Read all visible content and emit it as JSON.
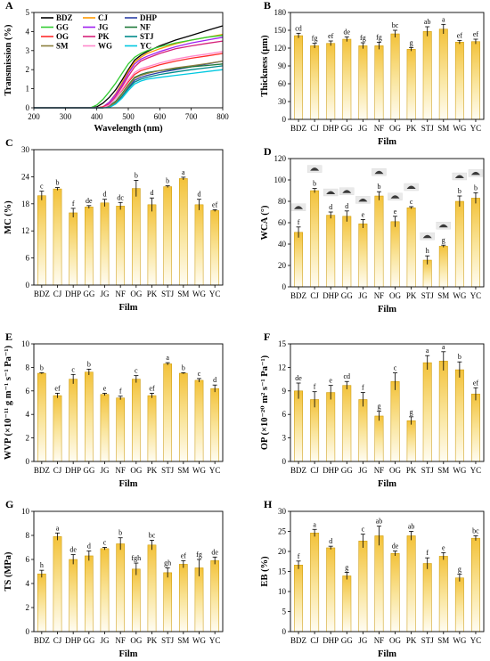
{
  "chart_data": [
    {
      "id": "A",
      "panel_label": "A",
      "type": "line",
      "xlabel": "Wavelength (nm)",
      "ylabel": "Transmission (%)",
      "xlim": [
        200,
        800
      ],
      "ylim": [
        0,
        5
      ],
      "xticks": [
        "200",
        "300",
        "400",
        "500",
        "600",
        "700",
        "800"
      ],
      "yticks": [
        "0",
        "1",
        "2",
        "3",
        "4",
        "5"
      ],
      "x": [
        200,
        380,
        400,
        420,
        440,
        460,
        480,
        500,
        520,
        540,
        560,
        600,
        650,
        700,
        750,
        800
      ],
      "series": [
        {
          "name": "BDZ",
          "color": "#000000",
          "values": [
            0,
            0,
            0.05,
            0.25,
            0.55,
            0.95,
            1.45,
            2.0,
            2.5,
            2.75,
            2.95,
            3.25,
            3.55,
            3.8,
            4.05,
            4.3
          ]
        },
        {
          "name": "CJ",
          "color": "#ff9900",
          "values": [
            0,
            0,
            0,
            0.05,
            0.3,
            0.75,
            1.3,
            1.9,
            2.4,
            2.65,
            2.85,
            3.1,
            3.35,
            3.55,
            3.7,
            3.85
          ]
        },
        {
          "name": "DHP",
          "color": "#2b3fa6",
          "values": [
            0,
            0,
            0,
            0,
            0.05,
            0.25,
            0.6,
            1.05,
            1.45,
            1.6,
            1.7,
            1.85,
            2.0,
            2.15,
            2.3,
            2.45
          ]
        },
        {
          "name": "GG",
          "color": "#33cc33",
          "values": [
            0,
            0,
            0.15,
            0.45,
            0.85,
            1.3,
            1.8,
            2.3,
            2.65,
            2.85,
            3.0,
            3.2,
            3.4,
            3.55,
            3.7,
            3.8
          ]
        },
        {
          "name": "JG",
          "color": "#a020f0",
          "values": [
            0,
            0,
            0,
            0.05,
            0.3,
            0.7,
            1.2,
            1.8,
            2.3,
            2.55,
            2.7,
            2.95,
            3.2,
            3.4,
            3.55,
            3.7
          ]
        },
        {
          "name": "NF",
          "color": "#1f7a3a",
          "values": [
            0,
            0,
            0,
            0,
            0.1,
            0.35,
            0.75,
            1.2,
            1.6,
            1.75,
            1.85,
            1.95,
            2.05,
            2.15,
            2.22,
            2.3
          ]
        },
        {
          "name": "OG",
          "color": "#ff2a2a",
          "values": [
            0,
            0,
            0,
            0.05,
            0.2,
            0.5,
            0.9,
            1.35,
            1.75,
            1.95,
            2.05,
            2.25,
            2.45,
            2.6,
            2.72,
            2.85
          ]
        },
        {
          "name": "PK",
          "color": "#d6217a",
          "values": [
            0,
            0,
            0,
            0,
            0.2,
            0.6,
            1.1,
            1.65,
            2.15,
            2.45,
            2.6,
            2.85,
            3.1,
            3.25,
            3.38,
            3.5
          ]
        },
        {
          "name": "STJ",
          "color": "#008b8b",
          "values": [
            0,
            0,
            0,
            0,
            0.05,
            0.25,
            0.6,
            1.0,
            1.35,
            1.5,
            1.6,
            1.75,
            1.88,
            2.0,
            2.1,
            2.2
          ]
        },
        {
          "name": "SM",
          "color": "#8b7d3c",
          "values": [
            0,
            0,
            0,
            0,
            0.05,
            0.3,
            0.7,
            1.15,
            1.55,
            1.7,
            1.8,
            1.95,
            2.1,
            2.2,
            2.32,
            2.45
          ]
        },
        {
          "name": "WG",
          "color": "#ff88cc",
          "values": [
            0,
            0,
            0,
            0,
            0.15,
            0.5,
            0.95,
            1.45,
            1.85,
            2.05,
            2.15,
            2.35,
            2.55,
            2.7,
            2.82,
            2.95
          ]
        },
        {
          "name": "YC",
          "color": "#00c8e0",
          "values": [
            0,
            0,
            0,
            0,
            0.02,
            0.2,
            0.5,
            0.9,
            1.25,
            1.4,
            1.5,
            1.6,
            1.7,
            1.8,
            1.9,
            2.0
          ]
        }
      ]
    },
    {
      "id": "B",
      "panel_label": "B",
      "type": "bar",
      "xlabel": "Film",
      "ylabel": "Thickness (μm)",
      "ylim": [
        0,
        180
      ],
      "yticks": [
        "0",
        "30",
        "60",
        "90",
        "120",
        "150",
        "180"
      ],
      "categories": [
        "BDZ",
        "CJ",
        "DHP",
        "GG",
        "JG",
        "NF",
        "OG",
        "PK",
        "STJ",
        "SM",
        "WG",
        "YC"
      ],
      "values": [
        141,
        124,
        128,
        135,
        124,
        124,
        144,
        118,
        148,
        152,
        130,
        131
      ],
      "errors": [
        4,
        4,
        4,
        4,
        5,
        6,
        6,
        3,
        8,
        8,
        3,
        4
      ],
      "letters": [
        "cd",
        "fg",
        "ef",
        "de",
        "fg",
        "fg",
        "bc",
        "g",
        "ab",
        "a",
        "ef",
        "ef"
      ]
    },
    {
      "id": "C",
      "panel_label": "C",
      "type": "bar",
      "xlabel": "Film",
      "ylabel": "MC (%)",
      "ylim": [
        0,
        30
      ],
      "yticks": [
        "0",
        "6",
        "12",
        "18",
        "24",
        "30"
      ],
      "categories": [
        "BDZ",
        "CJ",
        "DHP",
        "GG",
        "JG",
        "NF",
        "OG",
        "PK",
        "STJ",
        "SM",
        "WG",
        "YC"
      ],
      "values": [
        19.8,
        21.3,
        16.0,
        17.3,
        18.2,
        17.5,
        21.4,
        17.8,
        21.8,
        23.6,
        17.8,
        16.5
      ],
      "errors": [
        1.0,
        0.3,
        1.0,
        0.3,
        0.8,
        0.8,
        1.8,
        1.5,
        0.2,
        0.3,
        1.2,
        0.2
      ],
      "letters": [
        "c",
        "b",
        "f",
        "de",
        "d",
        "dc",
        "b",
        "d",
        "b",
        "a",
        "d",
        "ef"
      ]
    },
    {
      "id": "D",
      "panel_label": "D",
      "type": "bar",
      "xlabel": "Film",
      "ylabel": "WCA (°)",
      "ylim": [
        0,
        120
      ],
      "yticks": [
        "0",
        "20",
        "40",
        "60",
        "80",
        "100",
        "120"
      ],
      "categories": [
        "BDZ",
        "CJ",
        "DHP",
        "GG",
        "JG",
        "NF",
        "OG",
        "PK",
        "STJ",
        "SM",
        "WG",
        "YC"
      ],
      "values": [
        51,
        90,
        67,
        66,
        59,
        85,
        61,
        74,
        25,
        38,
        80,
        83
      ],
      "errors": [
        5,
        2,
        3,
        5,
        4,
        4,
        5,
        1,
        4,
        1,
        5,
        5
      ],
      "letters": [
        "f",
        "b",
        "d",
        "d",
        "e",
        "b",
        "e",
        "c",
        "h",
        "g",
        "b",
        "b"
      ]
    },
    {
      "id": "E",
      "panel_label": "E",
      "type": "bar",
      "xlabel": "Film",
      "ylabel": "WVP (×10⁻¹¹ g m⁻¹ s⁻¹ Pa⁻¹)",
      "ylim": [
        0,
        10
      ],
      "yticks": [
        "0",
        "2",
        "4",
        "6",
        "8",
        "10"
      ],
      "categories": [
        "BDZ",
        "CJ",
        "DHP",
        "GG",
        "JG",
        "NF",
        "OG",
        "PK",
        "STJ",
        "SM",
        "WG",
        "YC"
      ],
      "values": [
        7.5,
        5.6,
        7.0,
        7.6,
        5.7,
        5.4,
        7.0,
        5.6,
        8.3,
        7.5,
        6.9,
        6.2
      ],
      "errors": [
        0.05,
        0.2,
        0.4,
        0.25,
        0.1,
        0.15,
        0.3,
        0.2,
        0.1,
        0.05,
        0.15,
        0.3
      ],
      "letters": [
        "b",
        "ef",
        "c",
        "b",
        "e",
        "f",
        "c",
        "ef",
        "a",
        "b",
        "c",
        "d"
      ]
    },
    {
      "id": "F",
      "panel_label": "F",
      "type": "bar",
      "xlabel": "Film",
      "ylabel": "OP (×10⁻²⁰ m² s⁻¹ Pa⁻¹)",
      "ylim": [
        0,
        15
      ],
      "yticks": [
        "0",
        "3",
        "6",
        "9",
        "12",
        "15"
      ],
      "categories": [
        "BDZ",
        "CJ",
        "DHP",
        "GG",
        "JG",
        "NF",
        "OG",
        "PK",
        "STJ",
        "SM",
        "WG",
        "YC"
      ],
      "values": [
        9.0,
        7.9,
        8.8,
        9.7,
        7.9,
        5.8,
        10.2,
        5.2,
        12.6,
        12.8,
        11.7,
        8.6
      ],
      "errors": [
        1.0,
        1.0,
        0.9,
        0.5,
        0.9,
        0.6,
        1.1,
        0.5,
        0.9,
        1.2,
        1.0,
        0.8
      ],
      "letters": [
        "de",
        "f",
        "e",
        "cd",
        "f",
        "g",
        "c",
        "g",
        "a",
        "a",
        "b",
        "ef"
      ]
    },
    {
      "id": "G",
      "panel_label": "G",
      "type": "bar",
      "xlabel": "Film",
      "ylabel": "TS (MPa)",
      "ylim": [
        0,
        10
      ],
      "yticks": [
        "0",
        "2",
        "4",
        "6",
        "8",
        "10"
      ],
      "categories": [
        "BDZ",
        "CJ",
        "DHP",
        "GG",
        "JG",
        "NF",
        "OG",
        "PK",
        "STJ",
        "SM",
        "WG",
        "YC"
      ],
      "values": [
        4.8,
        7.9,
        6.0,
        6.3,
        6.9,
        7.3,
        5.2,
        7.2,
        4.9,
        5.6,
        5.3,
        5.9
      ],
      "errors": [
        0.3,
        0.3,
        0.4,
        0.4,
        0.1,
        0.5,
        0.5,
        0.4,
        0.4,
        0.3,
        0.7,
        0.3
      ],
      "letters": [
        "h",
        "a",
        "de",
        "d",
        "c",
        "b",
        "fgh",
        "bc",
        "gh",
        "ef",
        "fg",
        "de"
      ]
    },
    {
      "id": "H",
      "panel_label": "H",
      "type": "bar",
      "xlabel": "Film",
      "ylabel": "EB (%)",
      "ylim": [
        0,
        30
      ],
      "yticks": [
        "0",
        "5",
        "10",
        "15",
        "20",
        "25",
        "30"
      ],
      "categories": [
        "BDZ",
        "CJ",
        "DHP",
        "GG",
        "JG",
        "NF",
        "OG",
        "PK",
        "STJ",
        "SM",
        "WG",
        "YC"
      ],
      "values": [
        16.6,
        24.6,
        20.9,
        13.9,
        22.6,
        23.9,
        19.5,
        23.9,
        17.0,
        18.8,
        13.4,
        23.3
      ],
      "errors": [
        1.0,
        0.9,
        0.4,
        0.9,
        1.7,
        2.4,
        0.6,
        1.1,
        1.4,
        0.9,
        0.9,
        0.6
      ],
      "letters": [
        "f",
        "a",
        "d",
        "g",
        "c",
        "ab",
        "de",
        "ab",
        "f",
        "e",
        "g",
        "bc"
      ]
    }
  ]
}
